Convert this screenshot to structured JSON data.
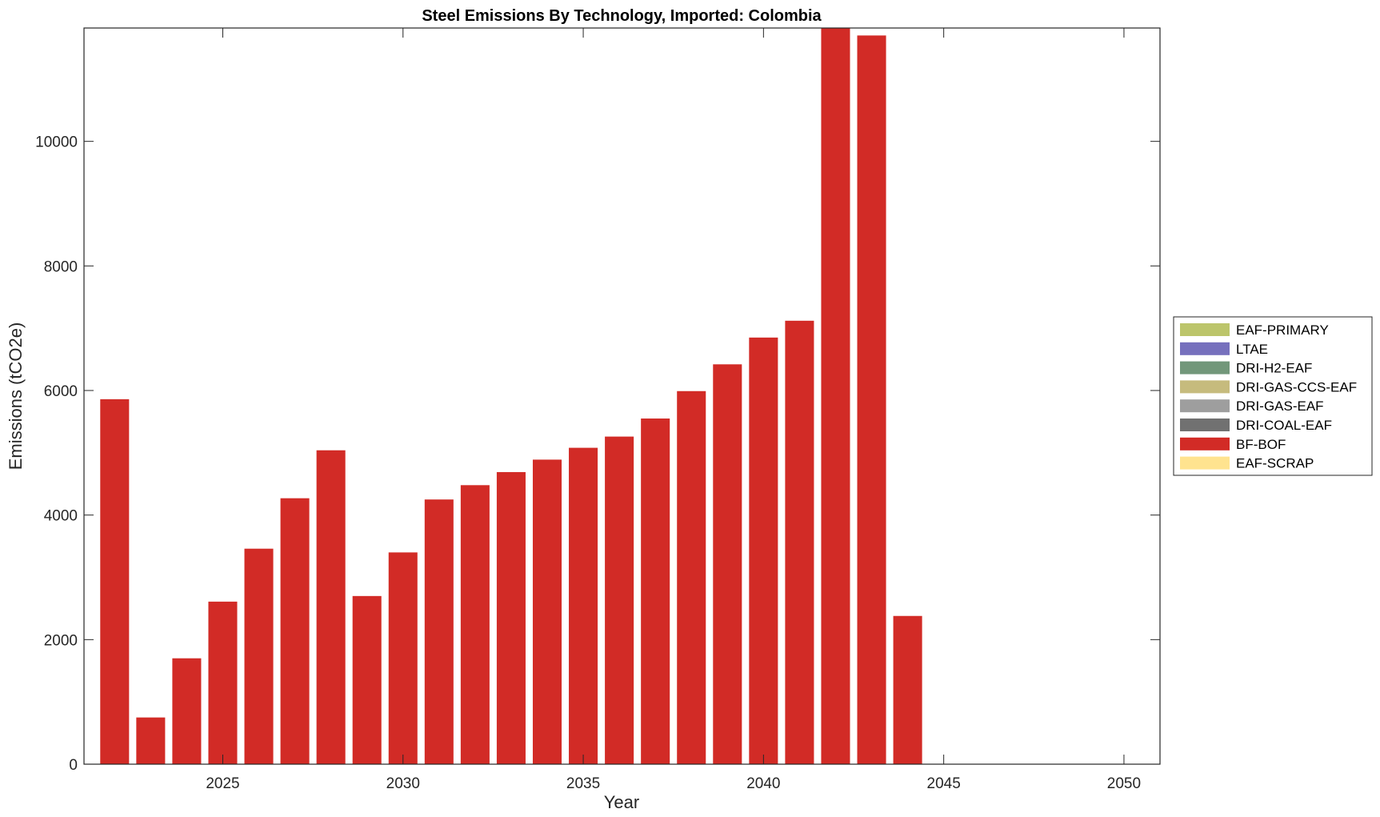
{
  "chart_data": {
    "type": "bar",
    "stacked": true,
    "title": "Steel Emissions By Technology, Imported: Colombia",
    "xlabel": "Year",
    "ylabel": "Emissions (tCO2e)",
    "xlim": [
      2021.15,
      2051
    ],
    "ylim": [
      0,
      11820
    ],
    "x_ticks": [
      2025,
      2030,
      2035,
      2040,
      2045,
      2050
    ],
    "y_ticks": [
      0,
      2000,
      4000,
      6000,
      8000,
      10000
    ],
    "grid": false,
    "legend_position": "right",
    "categories": [
      2022,
      2023,
      2024,
      2025,
      2026,
      2027,
      2028,
      2029,
      2030,
      2031,
      2032,
      2033,
      2034,
      2035,
      2036,
      2037,
      2038,
      2039,
      2040,
      2041,
      2042,
      2043,
      2044,
      2045,
      2046,
      2047,
      2048,
      2049,
      2050
    ],
    "series": [
      {
        "name": "EAF-PRIMARY",
        "color": "#bcc56b",
        "values": [
          0,
          0,
          0,
          0,
          0,
          0,
          0,
          0,
          0,
          0,
          0,
          0,
          0,
          0,
          0,
          0,
          0,
          0,
          0,
          0,
          0,
          0,
          0,
          0,
          0,
          0,
          0,
          0,
          0
        ]
      },
      {
        "name": "LTAE",
        "color": "#7670bd",
        "values": [
          0,
          0,
          0,
          0,
          0,
          0,
          0,
          0,
          0,
          0,
          0,
          0,
          0,
          0,
          0,
          0,
          0,
          0,
          0,
          0,
          0,
          0,
          0,
          0,
          0,
          0,
          0,
          0,
          0
        ]
      },
      {
        "name": "DRI-H2-EAF",
        "color": "#72977a",
        "values": [
          0,
          0,
          0,
          0,
          0,
          0,
          0,
          0,
          0,
          0,
          0,
          0,
          0,
          0,
          0,
          0,
          0,
          0,
          0,
          0,
          0,
          0,
          0,
          0,
          0,
          0,
          0,
          0,
          0
        ]
      },
      {
        "name": "DRI-GAS-CCS-EAF",
        "color": "#c6bb7d",
        "values": [
          0,
          0,
          0,
          0,
          0,
          0,
          0,
          0,
          0,
          0,
          0,
          0,
          0,
          0,
          0,
          0,
          0,
          0,
          0,
          0,
          0,
          0,
          0,
          0,
          0,
          0,
          0,
          0,
          0
        ]
      },
      {
        "name": "DRI-GAS-EAF",
        "color": "#9e9e9e",
        "values": [
          0,
          0,
          0,
          0,
          0,
          0,
          0,
          0,
          0,
          0,
          0,
          0,
          0,
          0,
          0,
          0,
          0,
          0,
          0,
          0,
          0,
          0,
          0,
          0,
          0,
          0,
          0,
          0,
          0
        ]
      },
      {
        "name": "DRI-COAL-EAF",
        "color": "#717171",
        "values": [
          0,
          0,
          0,
          0,
          0,
          0,
          0,
          0,
          0,
          0,
          0,
          0,
          0,
          0,
          0,
          0,
          0,
          0,
          0,
          0,
          0,
          0,
          0,
          0,
          0,
          0,
          0,
          0,
          0
        ]
      },
      {
        "name": "BF-BOF",
        "color": "#d22b26",
        "values": [
          5860,
          750,
          1700,
          2610,
          3460,
          4270,
          5040,
          2700,
          3400,
          4250,
          4480,
          4690,
          4890,
          5080,
          5260,
          5550,
          5990,
          6420,
          6850,
          7120,
          11820,
          11700,
          2380,
          0,
          0,
          0,
          0,
          0,
          0
        ]
      },
      {
        "name": "EAF-SCRAP",
        "color": "#ffe38f",
        "values": [
          0,
          0,
          0,
          0,
          0,
          0,
          0,
          0,
          0,
          0,
          0,
          0,
          0,
          0,
          0,
          0,
          0,
          0,
          0,
          0,
          0,
          0,
          0,
          0,
          0,
          0,
          0,
          0,
          0
        ]
      }
    ]
  }
}
